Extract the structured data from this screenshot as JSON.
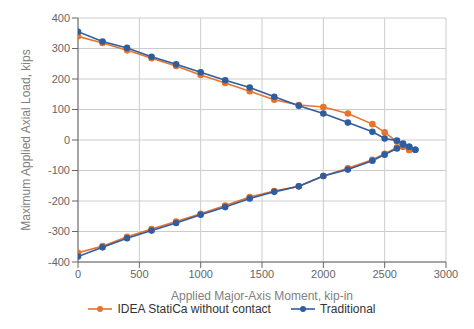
{
  "chart_data": {
    "type": "line",
    "xlabel": "Applied Major-Axis Moment, kip-in",
    "ylabel": "Maximum Applied Axial Load, kips",
    "xlim": [
      0,
      3000
    ],
    "ylim": [
      -400,
      400
    ],
    "xticks": [
      0,
      500,
      1000,
      1500,
      2000,
      2500,
      3000
    ],
    "yticks": [
      -400,
      -300,
      -200,
      -100,
      0,
      100,
      200,
      300,
      400
    ],
    "grid": true,
    "legend": "bottom",
    "series": [
      {
        "name": "IDEA StatiCa without contact",
        "color": "#E8732A",
        "marker": "circle",
        "segments": [
          {
            "x": [
              0,
              200,
              400,
              600,
              800,
              1000,
              1200,
              1400,
              1600,
              1800,
              2000,
              2200,
              2400,
              2500,
              2600,
              2650,
              2700
            ],
            "values": [
              340,
              318,
              294,
              268,
              243,
              213,
              187,
              160,
              132,
              115,
              108,
              87,
              52,
              25,
              -5,
              -22,
              -33
            ]
          },
          {
            "x": [
              0,
              200,
              400,
              600,
              800,
              1000,
              1200,
              1400,
              1600,
              1800,
              2000,
              2200,
              2400,
              2500,
              2600,
              2650,
              2700
            ],
            "values": [
              -370,
              -348,
              -317,
              -292,
              -267,
              -242,
              -215,
              -187,
              -167,
              -152,
              -118,
              -93,
              -65,
              -45,
              -25,
              -22,
              -33
            ]
          }
        ]
      },
      {
        "name": "Traditional",
        "color": "#2E5DA0",
        "marker": "circle",
        "segments": [
          {
            "x": [
              0,
              200,
              400,
              600,
              800,
              1000,
              1200,
              1400,
              1600,
              1800,
              2000,
              2200,
              2400,
              2500,
              2600,
              2650,
              2700,
              2750
            ],
            "values": [
              355,
              323,
              302,
              273,
              248,
              222,
              196,
              172,
              142,
              112,
              87,
              57,
              27,
              5,
              -2,
              -12,
              -22,
              -32
            ]
          },
          {
            "x": [
              0,
              200,
              400,
              600,
              800,
              1000,
              1200,
              1400,
              1600,
              1800,
              2000,
              2200,
              2400,
              2500,
              2600,
              2650,
              2700,
              2750
            ],
            "values": [
              -382,
              -352,
              -322,
              -297,
              -272,
              -245,
              -220,
              -192,
              -170,
              -152,
              -118,
              -97,
              -68,
              -48,
              -28,
              -15,
              -22,
              -32
            ]
          }
        ]
      }
    ]
  }
}
